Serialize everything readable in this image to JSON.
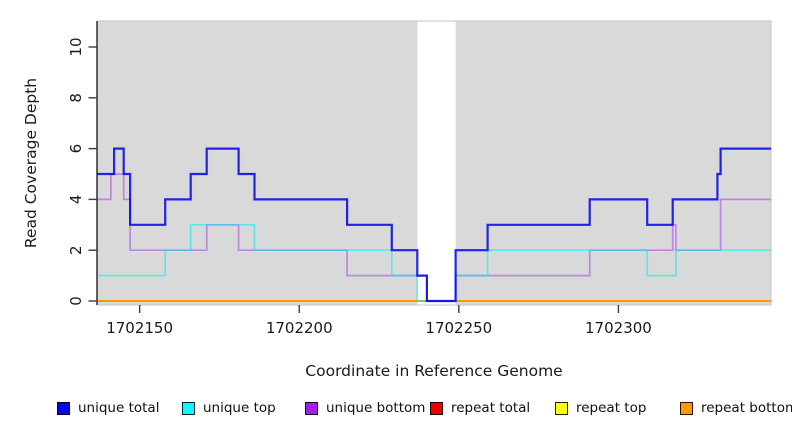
{
  "figure": {
    "background": "#ffffff",
    "plot_background": "#d9d9d9",
    "gap_band_color": "#ffffff",
    "axis_color": "#3c3c3c",
    "text_color": "#1a1a1a",
    "gap_region": {
      "x_start": 1702237,
      "x_end": 1702249
    }
  },
  "chart_data": {
    "type": "line",
    "subtype": "step",
    "title": "",
    "xlabel": "Coordinate in Reference Genome",
    "ylabel": "Read Coverage Depth",
    "x_range": [
      1702136.8,
      1702347.8
    ],
    "ylim": [
      0,
      11
    ],
    "x_ticks": [
      1702150,
      1702200,
      1702250,
      1702300
    ],
    "y_ticks": [
      0,
      2,
      4,
      6,
      8,
      10
    ],
    "grid": false,
    "legend_position": "bottom",
    "series": [
      {
        "name": "unique total",
        "color": "#0000EE",
        "points": [
          [
            1702137,
            5
          ],
          [
            1702142,
            6
          ],
          [
            1702145,
            5
          ],
          [
            1702147,
            3
          ],
          [
            1702158,
            4
          ],
          [
            1702166,
            5
          ],
          [
            1702171,
            6
          ],
          [
            1702181,
            5
          ],
          [
            1702186,
            4
          ],
          [
            1702215,
            3
          ],
          [
            1702229,
            2
          ],
          [
            1702237,
            1
          ],
          [
            1702240,
            0
          ],
          [
            1702249,
            2
          ],
          [
            1702259,
            3
          ],
          [
            1702291,
            4
          ],
          [
            1702309,
            3
          ],
          [
            1702317,
            4
          ],
          [
            1702331,
            5
          ],
          [
            1702332,
            6
          ]
        ]
      },
      {
        "name": "unique top",
        "color": "#00EEEE",
        "points": [
          [
            1702137,
            1
          ],
          [
            1702158,
            2
          ],
          [
            1702166,
            3
          ],
          [
            1702186,
            2
          ],
          [
            1702229,
            1
          ],
          [
            1702237,
            0
          ],
          [
            1702249,
            1
          ],
          [
            1702259,
            2
          ],
          [
            1702309,
            1
          ],
          [
            1702318,
            2
          ]
        ]
      },
      {
        "name": "unique bottom",
        "color": "#A020F0",
        "points": [
          [
            1702137,
            4
          ],
          [
            1702141,
            5
          ],
          [
            1702145,
            4
          ],
          [
            1702147,
            2
          ],
          [
            1702171,
            3
          ],
          [
            1702181,
            2
          ],
          [
            1702215,
            1
          ],
          [
            1702240,
            0
          ],
          [
            1702249,
            1
          ],
          [
            1702291,
            2
          ],
          [
            1702317,
            3
          ],
          [
            1702318,
            2
          ],
          [
            1702332,
            4
          ]
        ]
      },
      {
        "name": "repeat total",
        "color": "#EE0000",
        "points": [
          [
            1702137,
            0
          ]
        ]
      },
      {
        "name": "repeat top",
        "color": "#FFFF00",
        "points": [
          [
            1702137,
            0
          ]
        ]
      },
      {
        "name": "repeat bottom",
        "color": "#FF9800",
        "points": [
          [
            1702137,
            0
          ]
        ]
      }
    ]
  },
  "legend": {
    "items": [
      {
        "label": "unique total",
        "color": "#0000EE"
      },
      {
        "label": "unique top",
        "color": "#00FFFF"
      },
      {
        "label": "unique bottom",
        "color": "#A020F0"
      },
      {
        "label": "repeat total",
        "color": "#EE0000"
      },
      {
        "label": "repeat top",
        "color": "#FFFF00"
      },
      {
        "label": "repeat bottom",
        "color": "#FF9800"
      }
    ]
  }
}
